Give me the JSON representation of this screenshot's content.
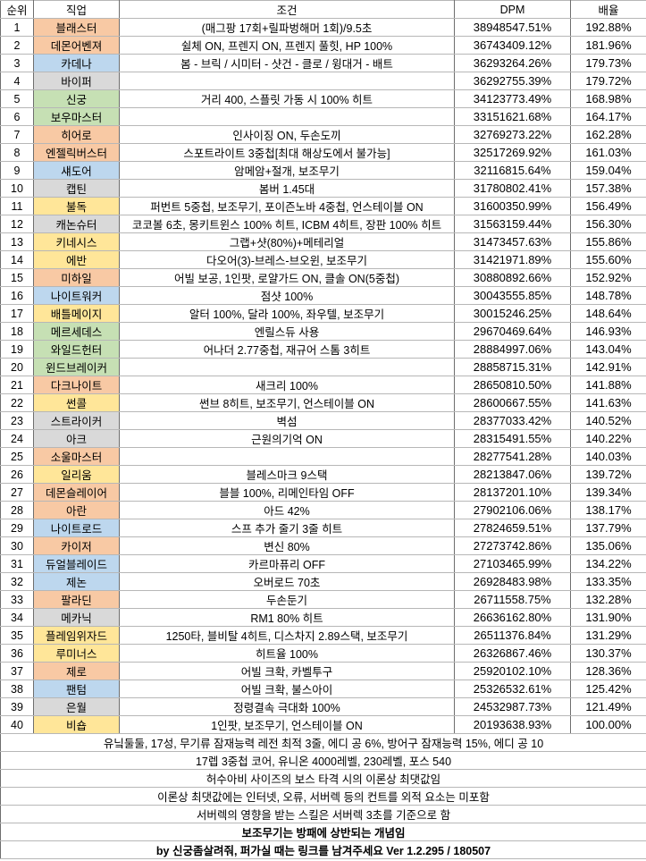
{
  "job_colors": {
    "orange": "#F8C9A4",
    "blue": "#BDD7EE",
    "gray": "#D9D9D9",
    "green": "#C6E0B4",
    "yellow": "#FFE699"
  },
  "table": {
    "headers": [
      "순위",
      "직업",
      "조건",
      "DPM",
      "배율"
    ],
    "rows": [
      {
        "rank": "1",
        "job": "블래스터",
        "color": "orange",
        "cond": "(매그팡 17회+릴파벙해머 1회)/9.5초",
        "dpm": "38948547.51%",
        "ratio": "192.88%"
      },
      {
        "rank": "2",
        "job": "데몬어벤져",
        "color": "orange",
        "cond": "쉴체 ON, 프렌지 ON, 프렌지 풀힛, HP 100%",
        "dpm": "36743409.12%",
        "ratio": "181.96%"
      },
      {
        "rank": "3",
        "job": "카데나",
        "color": "blue",
        "cond": "봄 - 브릭 / 시미터 - 샷건 - 클로 / 윙대거 - 배트",
        "dpm": "36293264.26%",
        "ratio": "179.73%"
      },
      {
        "rank": "4",
        "job": "바이퍼",
        "color": "gray",
        "cond": "",
        "dpm": "36292755.39%",
        "ratio": "179.72%"
      },
      {
        "rank": "5",
        "job": "신궁",
        "color": "green",
        "cond": "거리 400, 스플릿 가동 시 100% 히트",
        "dpm": "34123773.49%",
        "ratio": "168.98%"
      },
      {
        "rank": "6",
        "job": "보우마스터",
        "color": "green",
        "cond": "",
        "dpm": "33151621.68%",
        "ratio": "164.17%"
      },
      {
        "rank": "7",
        "job": "히어로",
        "color": "orange",
        "cond": "인사이징 ON, 두손도끼",
        "dpm": "32769273.22%",
        "ratio": "162.28%"
      },
      {
        "rank": "8",
        "job": "엔젤릭버스터",
        "color": "orange",
        "cond": "스포트라이트 3중첩[최대 해상도에서 불가능]",
        "dpm": "32517269.92%",
        "ratio": "161.03%"
      },
      {
        "rank": "9",
        "job": "섀도어",
        "color": "blue",
        "cond": "암메암+절개, 보조무기",
        "dpm": "32116815.64%",
        "ratio": "159.04%"
      },
      {
        "rank": "10",
        "job": "캡틴",
        "color": "gray",
        "cond": "봄버 1.45대",
        "dpm": "31780802.41%",
        "ratio": "157.38%"
      },
      {
        "rank": "11",
        "job": "불독",
        "color": "yellow",
        "cond": "퍼번트 5중첩, 보조무기, 포이즌노바 4중첩, 언스테이블 ON",
        "dpm": "31600350.99%",
        "ratio": "156.49%"
      },
      {
        "rank": "12",
        "job": "캐논슈터",
        "color": "gray",
        "cond": "코코볼 6초, 몽키트윈스 100% 히트, ICBM 4히트, 장판 100% 히트",
        "dpm": "31563159.44%",
        "ratio": "156.30%"
      },
      {
        "rank": "13",
        "job": "키네시스",
        "color": "yellow",
        "cond": "그랩+샷(80%)+메테리얼",
        "dpm": "31473457.63%",
        "ratio": "155.86%"
      },
      {
        "rank": "14",
        "job": "에반",
        "color": "yellow",
        "cond": "다오어(3)-브레스-브오윈, 보조무기",
        "dpm": "31421971.89%",
        "ratio": "155.60%"
      },
      {
        "rank": "15",
        "job": "미하일",
        "color": "orange",
        "cond": "어빌 보공, 1인팟, 로얄가드 ON, 클솔 ON(5중첩)",
        "dpm": "30880892.66%",
        "ratio": "152.92%"
      },
      {
        "rank": "16",
        "job": "나이트워커",
        "color": "blue",
        "cond": "점샷 100%",
        "dpm": "30043555.85%",
        "ratio": "148.78%"
      },
      {
        "rank": "17",
        "job": "배틀메이지",
        "color": "yellow",
        "cond": "알터 100%, 달라 100%, 좌우텔, 보조무기",
        "dpm": "30015246.25%",
        "ratio": "148.64%"
      },
      {
        "rank": "18",
        "job": "메르세데스",
        "color": "green",
        "cond": "엔릴스듀 사용",
        "dpm": "29670469.64%",
        "ratio": "146.93%"
      },
      {
        "rank": "19",
        "job": "와일드헌터",
        "color": "green",
        "cond": "어나더 2.77중첩, 재규어 스톰 3히트",
        "dpm": "28884997.06%",
        "ratio": "143.04%"
      },
      {
        "rank": "20",
        "job": "윈드브레이커",
        "color": "green",
        "cond": "",
        "dpm": "28858715.31%",
        "ratio": "142.91%"
      },
      {
        "rank": "21",
        "job": "다크나이트",
        "color": "orange",
        "cond": "새크리 100%",
        "dpm": "28650810.50%",
        "ratio": "141.88%"
      },
      {
        "rank": "22",
        "job": "썬콜",
        "color": "yellow",
        "cond": "썬브 8히트, 보조무기, 언스테이블 ON",
        "dpm": "28600667.55%",
        "ratio": "141.63%"
      },
      {
        "rank": "23",
        "job": "스트라이커",
        "color": "gray",
        "cond": "벽섬",
        "dpm": "28377033.42%",
        "ratio": "140.52%"
      },
      {
        "rank": "24",
        "job": "아크",
        "color": "gray",
        "cond": "근원의기억 ON",
        "dpm": "28315491.55%",
        "ratio": "140.22%"
      },
      {
        "rank": "25",
        "job": "소울마스터",
        "color": "orange",
        "cond": "",
        "dpm": "28277541.28%",
        "ratio": "140.03%"
      },
      {
        "rank": "26",
        "job": "일리움",
        "color": "yellow",
        "cond": "블레스마크 9스택",
        "dpm": "28213847.06%",
        "ratio": "139.72%"
      },
      {
        "rank": "27",
        "job": "데몬슬레이어",
        "color": "orange",
        "cond": "블블 100%, 리메인타임 OFF",
        "dpm": "28137201.10%",
        "ratio": "139.34%"
      },
      {
        "rank": "28",
        "job": "아란",
        "color": "orange",
        "cond": "아드 42%",
        "dpm": "27902106.06%",
        "ratio": "138.17%"
      },
      {
        "rank": "29",
        "job": "나이트로드",
        "color": "blue",
        "cond": "스프 추가 줄기 3줄 히트",
        "dpm": "27824659.51%",
        "ratio": "137.79%"
      },
      {
        "rank": "30",
        "job": "카이저",
        "color": "orange",
        "cond": "변신 80%",
        "dpm": "27273742.86%",
        "ratio": "135.06%"
      },
      {
        "rank": "31",
        "job": "듀얼블레이드",
        "color": "blue",
        "cond": "카르마퓨리 OFF",
        "dpm": "27103465.99%",
        "ratio": "134.22%"
      },
      {
        "rank": "32",
        "job": "제논",
        "color": "blue",
        "cond": "오버로드 70초",
        "dpm": "26928483.98%",
        "ratio": "133.35%"
      },
      {
        "rank": "33",
        "job": "팔라딘",
        "color": "orange",
        "cond": "두손둔기",
        "dpm": "26711558.75%",
        "ratio": "132.28%"
      },
      {
        "rank": "34",
        "job": "메카닉",
        "color": "gray",
        "cond": "RM1 80% 히트",
        "dpm": "26636162.80%",
        "ratio": "131.90%"
      },
      {
        "rank": "35",
        "job": "플레임위자드",
        "color": "yellow",
        "cond": "1250타, 블비탈 4히트, 디스차지 2.89스택, 보조무기",
        "dpm": "26511376.84%",
        "ratio": "131.29%"
      },
      {
        "rank": "36",
        "job": "루미너스",
        "color": "yellow",
        "cond": "히트율 100%",
        "dpm": "26326867.46%",
        "ratio": "130.37%"
      },
      {
        "rank": "37",
        "job": "제로",
        "color": "orange",
        "cond": "어빌 크확, 카벨투구",
        "dpm": "25920102.10%",
        "ratio": "128.36%"
      },
      {
        "rank": "38",
        "job": "팬텀",
        "color": "blue",
        "cond": "어빌 크확, 불스아이",
        "dpm": "25326532.61%",
        "ratio": "125.42%"
      },
      {
        "rank": "39",
        "job": "은월",
        "color": "gray",
        "cond": "정령결속 극대화 100%",
        "dpm": "24532987.73%",
        "ratio": "121.49%"
      },
      {
        "rank": "40",
        "job": "비숍",
        "color": "yellow",
        "cond": "1인팟, 보조무기, 언스테이블 ON",
        "dpm": "20193638.93%",
        "ratio": "100.00%"
      }
    ]
  },
  "footnotes": [
    {
      "text": "유닠둘둘, 17성, 무기류 잠재능력 레전 최적 3줄, 에디 공 6%, 방어구 잠재능력 15%, 에디 공 10",
      "bold": false
    },
    {
      "text": "17렙 3중첩 코어, 유니온 4000레벨, 230레벨, 포스 540",
      "bold": false
    },
    {
      "text": "허수아비 사이즈의 보스 타격 시의 이론상 최댓값임",
      "bold": false
    },
    {
      "text": "이론상 최댓값에는 인터넷, 오류, 서버렉 등의 컨트를 외적 요소는 미포함",
      "bold": false
    },
    {
      "text": "서버렉의 영향을 받는 스킬은 서버렉 3초를 기준으로 함",
      "bold": false
    },
    {
      "text": "보조무기는 방패에 상반되는 개념임",
      "bold": true
    },
    {
      "text": "by 신궁좀살려줘, 퍼가실 때는 링크를 남겨주세요 Ver 1.2.295 / 180507",
      "bold": true
    }
  ]
}
